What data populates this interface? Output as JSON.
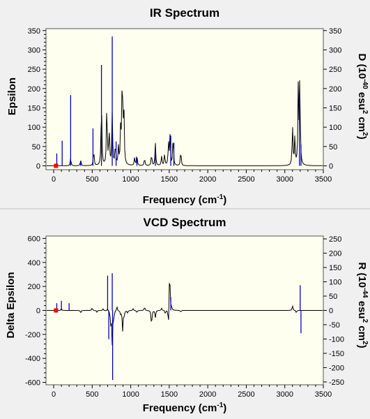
{
  "chart_data": [
    {
      "type": "line",
      "title": "IR Spectrum",
      "xlabel": "Frequency (cm-1)",
      "ylabel": "Epsilon",
      "y2label": "D (10-40 esu2 cm2)",
      "xlim": [
        -100,
        3500
      ],
      "ylim": [
        -10,
        355
      ],
      "y2lim": [
        -10,
        355
      ],
      "x_ticks": [
        0,
        500,
        1000,
        1500,
        2000,
        2500,
        3000,
        3500
      ],
      "y_ticks": [
        0,
        50,
        100,
        150,
        200,
        250,
        300,
        350
      ],
      "y2_ticks": [
        0,
        50,
        100,
        150,
        200,
        250,
        300,
        350
      ],
      "grid": false,
      "colors": {
        "curve": "#000000",
        "sticks": "#0000cc",
        "marker": "#ff0000",
        "background": "#fffff0"
      },
      "curve_baseline": 0,
      "peaks": [
        {
          "x": 40,
          "y": 8
        },
        {
          "x": 220,
          "y": 20
        },
        {
          "x": 350,
          "y": 15
        },
        {
          "x": 520,
          "y": 40
        },
        {
          "x": 620,
          "y": 175
        },
        {
          "x": 690,
          "y": 165
        },
        {
          "x": 720,
          "y": 95
        },
        {
          "x": 760,
          "y": 140
        },
        {
          "x": 800,
          "y": 55
        },
        {
          "x": 840,
          "y": 45
        },
        {
          "x": 870,
          "y": 100
        },
        {
          "x": 890,
          "y": 250
        },
        {
          "x": 910,
          "y": 160
        },
        {
          "x": 1050,
          "y": 20
        },
        {
          "x": 1080,
          "y": 30
        },
        {
          "x": 1180,
          "y": 20
        },
        {
          "x": 1270,
          "y": 30
        },
        {
          "x": 1320,
          "y": 58
        },
        {
          "x": 1400,
          "y": 25
        },
        {
          "x": 1440,
          "y": 30
        },
        {
          "x": 1490,
          "y": 60
        },
        {
          "x": 1510,
          "y": 75
        },
        {
          "x": 1550,
          "y": 78
        },
        {
          "x": 1650,
          "y": 40
        },
        {
          "x": 3100,
          "y": 105
        },
        {
          "x": 3130,
          "y": 70
        },
        {
          "x": 3175,
          "y": 200
        },
        {
          "x": 3195,
          "y": 235
        }
      ],
      "sticks": [
        {
          "x": 40,
          "y": 32
        },
        {
          "x": 110,
          "y": 65
        },
        {
          "x": 220,
          "y": 183
        },
        {
          "x": 350,
          "y": 10
        },
        {
          "x": 510,
          "y": 97
        },
        {
          "x": 620,
          "y": 261
        },
        {
          "x": 760,
          "y": 335
        },
        {
          "x": 810,
          "y": 63
        },
        {
          "x": 1080,
          "y": 20
        },
        {
          "x": 1320,
          "y": 40
        },
        {
          "x": 1520,
          "y": 78
        },
        {
          "x": 1560,
          "y": 60
        },
        {
          "x": 3190,
          "y": 185
        },
        {
          "x": 3210,
          "y": 55
        }
      ]
    },
    {
      "type": "line",
      "title": "VCD Spectrum",
      "xlabel": "Frequency (cm-1)",
      "ylabel": "Delta Epsilon",
      "y2label": "R (10-44 esu2 cm2)",
      "xlim": [
        -100,
        3500
      ],
      "ylim": [
        -620,
        620
      ],
      "y2lim": [
        -260,
        260
      ],
      "x_ticks": [
        0,
        500,
        1000,
        1500,
        2000,
        2500,
        3000,
        3500
      ],
      "y_ticks": [
        -600,
        -400,
        -200,
        0,
        200,
        400,
        600
      ],
      "y2_ticks": [
        -250,
        -200,
        -150,
        -100,
        -50,
        0,
        50,
        100,
        150,
        200,
        250
      ],
      "grid": false,
      "colors": {
        "curve": "#000000",
        "sticks": "#0000cc",
        "marker": "#ff0000",
        "background": "#fffff0"
      },
      "curve_baseline": 0,
      "peaks": [
        {
          "x": 100,
          "y": 15
        },
        {
          "x": 350,
          "y": -20
        },
        {
          "x": 500,
          "y": 20
        },
        {
          "x": 560,
          "y": -15
        },
        {
          "x": 640,
          "y": 15
        },
        {
          "x": 700,
          "y": 20
        },
        {
          "x": 740,
          "y": -110
        },
        {
          "x": 760,
          "y": -280
        },
        {
          "x": 780,
          "y": -60
        },
        {
          "x": 820,
          "y": 40
        },
        {
          "x": 870,
          "y": -30
        },
        {
          "x": 895,
          "y": -170
        },
        {
          "x": 915,
          "y": -40
        },
        {
          "x": 960,
          "y": -20
        },
        {
          "x": 1030,
          "y": 15
        },
        {
          "x": 1080,
          "y": -20
        },
        {
          "x": 1180,
          "y": 30
        },
        {
          "x": 1270,
          "y": -130
        },
        {
          "x": 1320,
          "y": -60
        },
        {
          "x": 1400,
          "y": 20
        },
        {
          "x": 1450,
          "y": -30
        },
        {
          "x": 1490,
          "y": -160
        },
        {
          "x": 1505,
          "y": 380
        },
        {
          "x": 1530,
          "y": 20
        },
        {
          "x": 1650,
          "y": -15
        },
        {
          "x": 3100,
          "y": 40
        },
        {
          "x": 3150,
          "y": -20
        }
      ],
      "sticks": [
        {
          "x": 40,
          "y": 60
        },
        {
          "x": 100,
          "y": 80
        },
        {
          "x": 200,
          "y": 60
        },
        {
          "x": 700,
          "y": 290
        },
        {
          "x": 715,
          "y": -240
        },
        {
          "x": 760,
          "y": 310
        },
        {
          "x": 765,
          "y": -580
        },
        {
          "x": 1520,
          "y": 110
        },
        {
          "x": 3200,
          "y": 210
        },
        {
          "x": 3210,
          "y": -190
        }
      ]
    }
  ]
}
